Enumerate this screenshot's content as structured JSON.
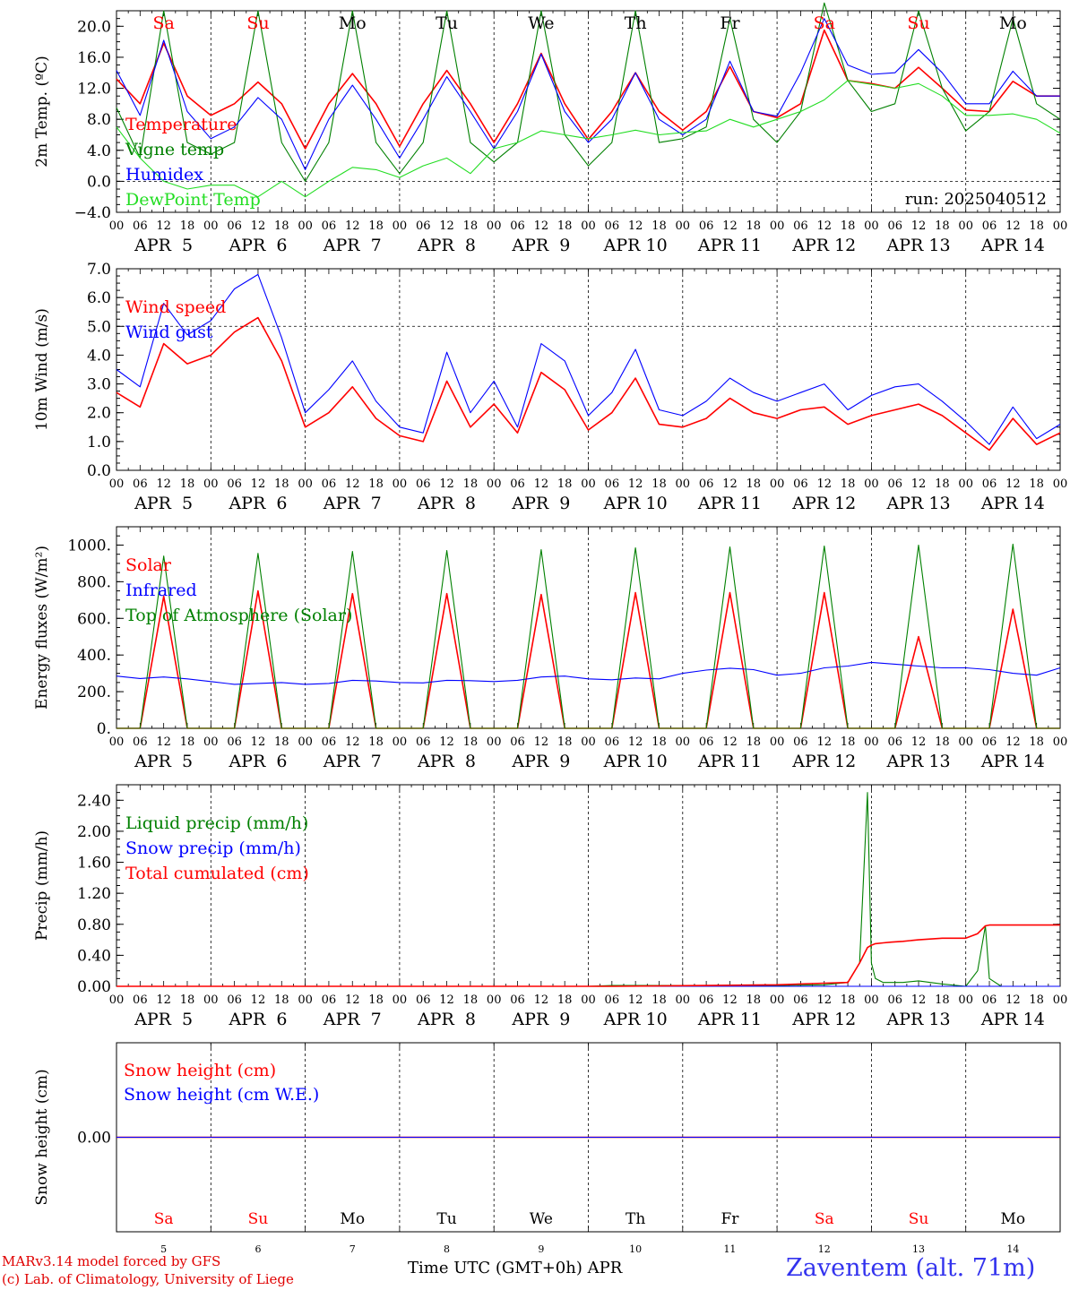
{
  "colors": {
    "red": "#ff0000",
    "green": "#008000",
    "blue": "#0000ff",
    "lime": "#22dd22"
  },
  "run_label": "run: 2025040512",
  "footer": {
    "model": "MARv3.14 model forced by GFS",
    "credit": "(c) Lab. of Climatology, University of Liege",
    "xlabel": "Time UTC (GMT+0h) APR",
    "station": "Zaventem (alt. 71m)"
  },
  "hour_ticks": [
    "00",
    "06",
    "12",
    "18"
  ],
  "day_names": [
    {
      "name": "Sa",
      "weekend": true
    },
    {
      "name": "Su",
      "weekend": true
    },
    {
      "name": "Mo",
      "weekend": false
    },
    {
      "name": "Tu",
      "weekend": false
    },
    {
      "name": "We",
      "weekend": false
    },
    {
      "name": "Th",
      "weekend": false
    },
    {
      "name": "Fr",
      "weekend": false
    },
    {
      "name": "Sa",
      "weekend": true
    },
    {
      "name": "Su",
      "weekend": true
    },
    {
      "name": "Mo",
      "weekend": false
    }
  ],
  "day_dates": [
    "APR  5",
    "APR  6",
    "APR  7",
    "APR  8",
    "APR  9",
    "APR 10",
    "APR 11",
    "APR 12",
    "APR 13",
    "APR 14"
  ],
  "day_numbers": [
    "5",
    "6",
    "7",
    "8",
    "9",
    "10",
    "11",
    "12",
    "13",
    "14"
  ],
  "chart_data": [
    {
      "type": "line",
      "ylabel": "2m Temp. (ºC)",
      "ylim": [
        -4,
        22
      ],
      "yticks": [
        "20.0",
        "16.0",
        "12.0",
        "8.0",
        "4.0",
        "0.0",
        "−4.0"
      ],
      "ytick_values": [
        20,
        16,
        12,
        8,
        4,
        0,
        -4
      ],
      "ref_line": 0,
      "x_unit": "hours since Apr 5 00 UTC",
      "x": [
        0,
        6,
        12,
        18,
        24,
        30,
        36,
        42,
        48,
        54,
        60,
        66,
        72,
        78,
        84,
        90,
        96,
        102,
        108,
        114,
        120,
        126,
        132,
        138,
        144,
        150,
        156,
        162,
        168,
        174,
        180,
        186,
        192,
        198,
        204,
        210,
        216,
        222,
        228,
        234,
        240
      ],
      "series": [
        {
          "name": "Temperature",
          "color": "red",
          "values": [
            13.2,
            10,
            17.8,
            11,
            8.5,
            10,
            12.8,
            10,
            4.2,
            10,
            13.9,
            10,
            4.5,
            10,
            14.3,
            10,
            5,
            10,
            16.5,
            10,
            5.4,
            9,
            14,
            9,
            6.6,
            9,
            14.8,
            9,
            8.2,
            10,
            19.5,
            13,
            12.6,
            12,
            14.7,
            12,
            9.2,
            9,
            12.9,
            11,
            11
          ]
        },
        {
          "name": "Vigne temp",
          "color": "green",
          "values": [
            9.5,
            3,
            22,
            5,
            3.5,
            5,
            22,
            5,
            0,
            5,
            22,
            5,
            1,
            5,
            22,
            5,
            2.5,
            5,
            22,
            6,
            2,
            5,
            22,
            5,
            5.5,
            7,
            21,
            8,
            5,
            9,
            23,
            13,
            9,
            10,
            22,
            12,
            6.5,
            9,
            21,
            10,
            8
          ]
        },
        {
          "name": "Humidex",
          "color": "blue",
          "values": [
            14.3,
            8.5,
            18.2,
            9,
            5.5,
            7,
            10.8,
            8,
            1.5,
            8,
            12.4,
            8,
            3,
            8,
            13.5,
            9,
            4.2,
            9,
            16.4,
            9,
            5,
            8,
            14,
            8,
            6,
            8,
            15.5,
            9,
            8.4,
            14,
            21,
            15,
            13.8,
            14,
            17,
            14,
            10,
            10,
            14.2,
            11,
            11
          ]
        },
        {
          "name": "DewPoint Temp",
          "color": "lime",
          "values": [
            7,
            3,
            0,
            -1,
            -0.5,
            -0.5,
            -2,
            0,
            -2,
            0,
            1.8,
            1.5,
            0.5,
            2,
            3,
            1,
            4.2,
            5,
            6.5,
            6,
            5.5,
            6,
            6.6,
            6,
            6.3,
            6.5,
            8,
            7,
            8,
            9,
            10.5,
            13,
            12.5,
            12,
            12.6,
            11,
            8.5,
            8.5,
            8.7,
            8,
            6.2
          ]
        }
      ]
    },
    {
      "type": "line",
      "ylabel": "10m Wind (m/s)",
      "ylim": [
        0,
        7
      ],
      "yticks": [
        "7.0",
        "6.0",
        "5.0",
        "4.0",
        "3.0",
        "2.0",
        "1.0",
        "0.0"
      ],
      "ytick_values": [
        7,
        6,
        5,
        4,
        3,
        2,
        1,
        0
      ],
      "ref_line": 5,
      "x_unit": "hours since Apr 5 00 UTC",
      "x": [
        0,
        6,
        12,
        18,
        24,
        30,
        36,
        42,
        48,
        54,
        60,
        66,
        72,
        78,
        84,
        90,
        96,
        102,
        108,
        114,
        120,
        126,
        132,
        138,
        144,
        150,
        156,
        162,
        168,
        174,
        180,
        186,
        192,
        198,
        204,
        210,
        216,
        222,
        228,
        234,
        240
      ],
      "series": [
        {
          "name": "Wind speed",
          "color": "red",
          "values": [
            2.7,
            2.2,
            4.4,
            3.7,
            4.0,
            4.8,
            5.3,
            3.8,
            1.5,
            2.0,
            2.9,
            1.8,
            1.2,
            1.0,
            3.1,
            1.5,
            2.3,
            1.3,
            3.4,
            2.8,
            1.4,
            2.0,
            3.2,
            1.6,
            1.5,
            1.8,
            2.5,
            2.0,
            1.8,
            2.1,
            2.2,
            1.6,
            1.9,
            2.1,
            2.3,
            1.9,
            1.3,
            0.7,
            1.8,
            0.9,
            1.3
          ]
        },
        {
          "name": "Wind gust",
          "color": "blue",
          "values": [
            3.5,
            2.9,
            5.8,
            4.7,
            5.2,
            6.3,
            6.8,
            4.6,
            2.0,
            2.8,
            3.8,
            2.4,
            1.5,
            1.3,
            4.1,
            2.0,
            3.1,
            1.5,
            4.4,
            3.8,
            1.9,
            2.7,
            4.2,
            2.1,
            1.9,
            2.4,
            3.2,
            2.7,
            2.4,
            2.7,
            3.0,
            2.1,
            2.6,
            2.9,
            3.0,
            2.4,
            1.7,
            0.9,
            2.2,
            1.1,
            1.6
          ]
        }
      ]
    },
    {
      "type": "line",
      "ylabel": "Energy fluxes (W/m²)",
      "ylim": [
        0,
        1100
      ],
      "yticks": [
        "1000.",
        "800.",
        "600.",
        "400.",
        "200.",
        "0."
      ],
      "ytick_values": [
        1000,
        800,
        600,
        400,
        200,
        0
      ],
      "ref_line": null,
      "x_unit": "hours since Apr 5 00 UTC",
      "x": [
        0,
        6,
        12,
        18,
        24,
        30,
        36,
        42,
        48,
        54,
        60,
        66,
        72,
        78,
        84,
        90,
        96,
        102,
        108,
        114,
        120,
        126,
        132,
        138,
        144,
        150,
        156,
        162,
        168,
        174,
        180,
        186,
        192,
        198,
        204,
        210,
        216,
        222,
        228,
        234,
        240
      ],
      "series": [
        {
          "name": "Solar",
          "color": "red",
          "values": [
            0,
            0,
            720,
            0,
            0,
            0,
            750,
            0,
            0,
            0,
            735,
            0,
            0,
            0,
            735,
            0,
            0,
            0,
            730,
            0,
            0,
            0,
            740,
            0,
            0,
            0,
            740,
            0,
            0,
            0,
            740,
            0,
            0,
            0,
            500,
            0,
            0,
            0,
            650,
            0,
            0
          ]
        },
        {
          "name": "Infrared",
          "color": "blue",
          "values": [
            285,
            272,
            280,
            270,
            255,
            240,
            245,
            250,
            240,
            245,
            262,
            258,
            250,
            248,
            262,
            260,
            255,
            262,
            280,
            285,
            270,
            265,
            275,
            270,
            300,
            318,
            328,
            320,
            290,
            300,
            330,
            340,
            360,
            350,
            340,
            330,
            330,
            320,
            300,
            290,
            330
          ]
        },
        {
          "name": "Top of Atmosphere (Solar)",
          "color": "green",
          "values": [
            0,
            0,
            940,
            0,
            0,
            0,
            955,
            0,
            0,
            0,
            965,
            0,
            0,
            0,
            970,
            0,
            0,
            0,
            975,
            0,
            0,
            0,
            985,
            0,
            0,
            0,
            990,
            0,
            0,
            0,
            995,
            0,
            0,
            0,
            1000,
            0,
            0,
            0,
            1005,
            0,
            0
          ]
        }
      ]
    },
    {
      "type": "line",
      "ylabel": "Precip (mm/h)",
      "ylim": [
        0,
        2.6
      ],
      "yticks": [
        "2.40",
        "2.00",
        "1.60",
        "1.20",
        "0.80",
        "0.40",
        "0.00"
      ],
      "ytick_values": [
        2.4,
        2.0,
        1.6,
        1.2,
        0.8,
        0.4,
        0.0
      ],
      "ref_line": null,
      "x_unit": "hours since Apr 5 00 UTC",
      "x": [
        0,
        120,
        126,
        150,
        168,
        180,
        186,
        189,
        191,
        192,
        193,
        195,
        197,
        200,
        204,
        210,
        216,
        219,
        221,
        222,
        225,
        227,
        228,
        240
      ],
      "series": [
        {
          "name": "Liquid precip (mm/h)",
          "color": "green",
          "values": [
            0,
            0,
            0.01,
            0.01,
            0.01,
            0.02,
            0.05,
            0.3,
            2.5,
            0.3,
            0.1,
            0.05,
            0.05,
            0.05,
            0.07,
            0.03,
            0,
            0.2,
            0.78,
            0.1,
            0,
            0,
            0,
            0
          ]
        },
        {
          "name": "Snow precip (mm/h)",
          "color": "blue",
          "values": [
            0,
            0,
            0,
            0,
            0,
            0,
            0,
            0,
            0,
            0,
            0,
            0,
            0,
            0,
            0,
            0,
            0,
            0,
            0,
            0,
            0,
            0,
            0,
            0
          ]
        },
        {
          "name": "Total cumulated (cm)",
          "color": "red",
          "values": [
            0,
            0,
            0,
            0.01,
            0.02,
            0.04,
            0.05,
            0.3,
            0.5,
            0.53,
            0.55,
            0.56,
            0.57,
            0.58,
            0.6,
            0.62,
            0.62,
            0.68,
            0.78,
            0.79,
            0.79,
            0.79,
            0.79,
            0.79
          ]
        }
      ]
    },
    {
      "type": "line",
      "ylabel": "Snow height (cm)",
      "ylim": [
        -1,
        1
      ],
      "yticks": [
        "0.00"
      ],
      "ytick_values": [
        0
      ],
      "ref_line": null,
      "x_unit": "hours since Apr 5 00 UTC",
      "x": [
        0,
        240
      ],
      "series": [
        {
          "name": "Snow height (cm)",
          "color": "red",
          "values": [
            0,
            0
          ]
        },
        {
          "name": "Snow height (cm W.E.)",
          "color": "blue",
          "values": [
            0,
            0
          ]
        }
      ]
    }
  ]
}
